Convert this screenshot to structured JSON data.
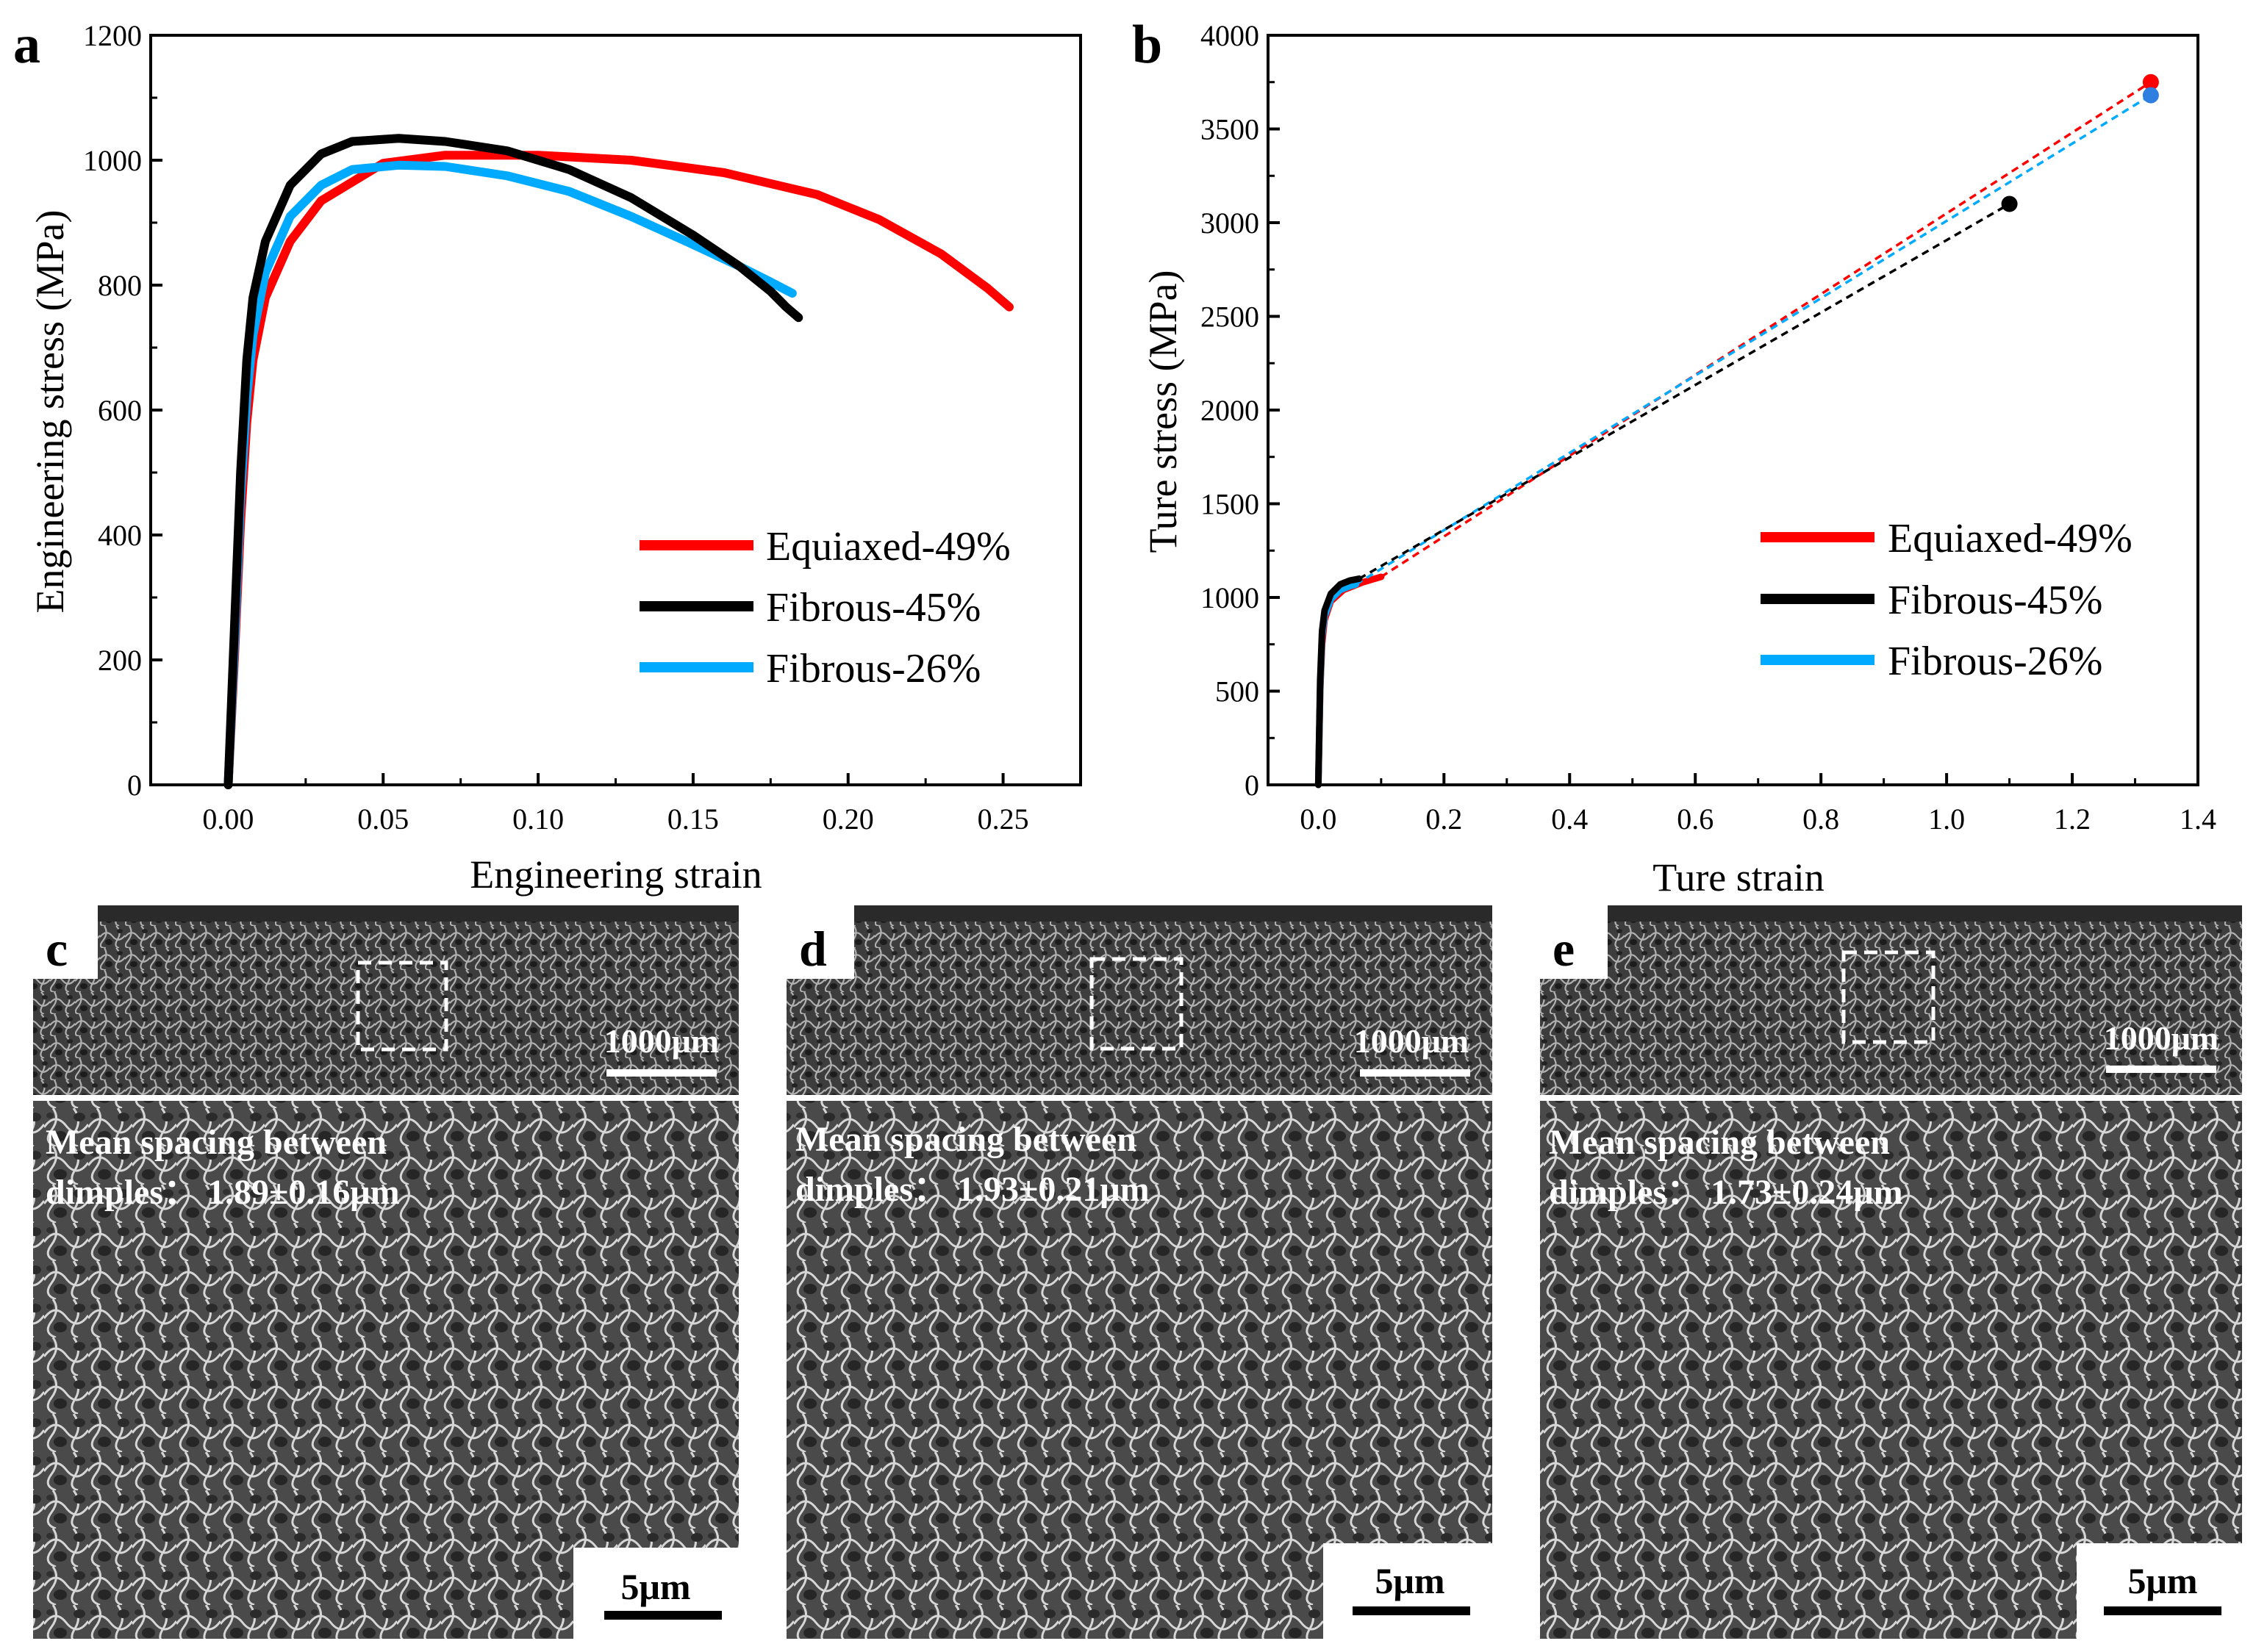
{
  "panel_labels": {
    "a": "a",
    "b": "b",
    "c": "c",
    "d": "d",
    "e": "e"
  },
  "colors": {
    "equiaxed": "#ff0000",
    "fibrous45": "#000000",
    "fibrous26": "#00aaff",
    "dot_blue": "#2e7fe0"
  },
  "chart_data": [
    {
      "type": "line",
      "panel": "a",
      "xlabel": "Engineering strain",
      "ylabel": "Engineering stress (MPa)",
      "xlim": [
        -0.025,
        0.275
      ],
      "ylim": [
        0,
        1200
      ],
      "xticks": [
        "0.00",
        "0.05",
        "0.10",
        "0.15",
        "0.20",
        "0.25"
      ],
      "xtick_values": [
        0,
        0.05,
        0.1,
        0.15,
        0.2,
        0.25
      ],
      "yticks": [
        "0",
        "200",
        "400",
        "600",
        "800",
        "1000",
        "1200"
      ],
      "ytick_values": [
        0,
        200,
        400,
        600,
        800,
        1000,
        1200
      ],
      "legend": [
        "Equiaxed-49%",
        "Fibrous-45%",
        "Fibrous-26%"
      ],
      "legend_position": "bottom-right",
      "series": [
        {
          "name": "Equiaxed-49%",
          "color": "#ff0000",
          "x": [
            0,
            0.002,
            0.004,
            0.006,
            0.008,
            0.012,
            0.02,
            0.03,
            0.05,
            0.07,
            0.1,
            0.13,
            0.16,
            0.19,
            0.21,
            0.23,
            0.245,
            0.252
          ],
          "y": [
            0,
            200,
            420,
            580,
            680,
            780,
            870,
            935,
            995,
            1008,
            1008,
            1000,
            980,
            945,
            905,
            850,
            795,
            765
          ]
        },
        {
          "name": "Fibrous-45%",
          "color": "#000000",
          "x": [
            0,
            0.002,
            0.004,
            0.006,
            0.008,
            0.012,
            0.02,
            0.03,
            0.04,
            0.055,
            0.07,
            0.09,
            0.11,
            0.13,
            0.15,
            0.165,
            0.175,
            0.18,
            0.184
          ],
          "y": [
            0,
            250,
            500,
            680,
            780,
            870,
            960,
            1010,
            1030,
            1035,
            1030,
            1015,
            985,
            940,
            880,
            830,
            790,
            765,
            748
          ]
        },
        {
          "name": "Fibrous-26%",
          "color": "#00aaff",
          "x": [
            0,
            0.002,
            0.004,
            0.006,
            0.008,
            0.012,
            0.02,
            0.03,
            0.04,
            0.055,
            0.07,
            0.09,
            0.11,
            0.13,
            0.15,
            0.165,
            0.175,
            0.182
          ],
          "y": [
            0,
            220,
            460,
            620,
            720,
            820,
            910,
            960,
            985,
            992,
            990,
            975,
            950,
            910,
            865,
            830,
            805,
            787
          ]
        }
      ]
    },
    {
      "type": "line",
      "panel": "b",
      "xlabel": "Ture strain",
      "ylabel": "Ture stress (MPa)",
      "xlim": [
        -0.08,
        1.4
      ],
      "ylim": [
        0,
        4000
      ],
      "xticks": [
        "0.0",
        "0.2",
        "0.4",
        "0.6",
        "0.8",
        "1.0",
        "1.2",
        "1.4"
      ],
      "xtick_values": [
        0,
        0.2,
        0.4,
        0.6,
        0.8,
        1.0,
        1.2,
        1.4
      ],
      "yticks": [
        "0",
        "500",
        "1000",
        "1500",
        "2000",
        "2500",
        "3000",
        "3500",
        "4000"
      ],
      "ytick_values": [
        0,
        500,
        1000,
        1500,
        2000,
        2500,
        3000,
        3500,
        4000
      ],
      "legend": [
        "Equiaxed-49%",
        "Fibrous-45%",
        "Fibrous-26%"
      ],
      "legend_position": "bottom-right",
      "series": [
        {
          "name": "Equiaxed-49%",
          "color": "#ff0000",
          "x": [
            0,
            0.003,
            0.006,
            0.01,
            0.02,
            0.04,
            0.07,
            0.1
          ],
          "y": [
            0,
            500,
            750,
            880,
            980,
            1040,
            1080,
            1110
          ],
          "fracture": {
            "x": 1.325,
            "y": 3750
          }
        },
        {
          "name": "Fibrous-45%",
          "color": "#000000",
          "x": [
            0,
            0.003,
            0.006,
            0.01,
            0.02,
            0.035,
            0.05,
            0.065
          ],
          "y": [
            0,
            560,
            820,
            930,
            1020,
            1070,
            1090,
            1100
          ],
          "fracture": {
            "x": 1.1,
            "y": 3100
          }
        },
        {
          "name": "Fibrous-26%",
          "color": "#00aaff",
          "x": [
            0,
            0.003,
            0.006,
            0.01,
            0.02,
            0.035,
            0.05,
            0.06
          ],
          "y": [
            0,
            520,
            790,
            900,
            990,
            1040,
            1060,
            1070
          ],
          "fracture": {
            "x": 1.325,
            "y": 3680
          }
        }
      ]
    }
  ],
  "sem_panels": [
    {
      "id": "c",
      "scale_top": "1000μm",
      "caption_line1": "Mean spacing between",
      "caption_line2": "dimples： 1.89±0.16μm",
      "scale_bottom": "5μm"
    },
    {
      "id": "d",
      "scale_top": "1000μm",
      "caption_line1": "Mean spacing between",
      "caption_line2": "dimples： 1.93±0.21μm",
      "scale_bottom": "5μm"
    },
    {
      "id": "e",
      "scale_top": "1000μm",
      "caption_line1": "Mean spacing between",
      "caption_line2": "dimples： 1.73±0.24μm",
      "scale_bottom": "5μm"
    }
  ]
}
